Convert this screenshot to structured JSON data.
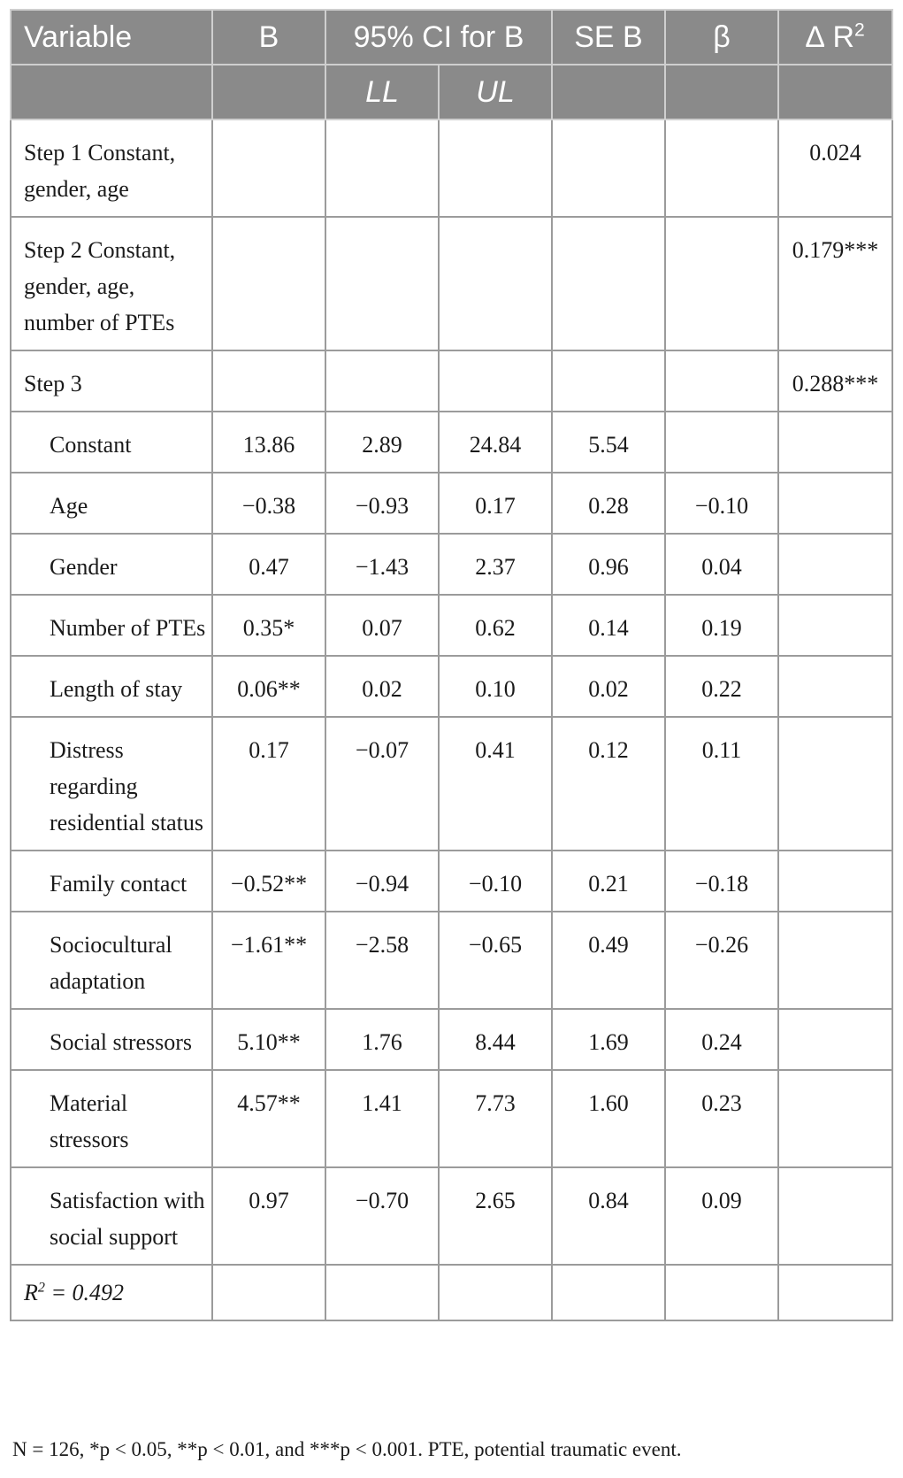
{
  "table": {
    "header": {
      "variable": "Variable",
      "b": "B",
      "ci": "95% CI for B",
      "se_b": "SE B",
      "beta": "β",
      "delta_r2_base": "∆ R",
      "delta_r2_sup": "2",
      "ll": "LL",
      "ul": "UL"
    },
    "rows": [
      {
        "label": "Step 1 Constant, gender, age",
        "indent": false,
        "b": "",
        "ll": "",
        "ul": "",
        "se": "",
        "beta": "",
        "dr2": "0.024"
      },
      {
        "label": "Step 2 Constant, gender, age, number of PTEs",
        "indent": false,
        "b": "",
        "ll": "",
        "ul": "",
        "se": "",
        "beta": "",
        "dr2": "0.179***"
      },
      {
        "label": "Step 3",
        "indent": false,
        "b": "",
        "ll": "",
        "ul": "",
        "se": "",
        "beta": "",
        "dr2": "0.288***"
      },
      {
        "label": "Constant",
        "indent": true,
        "b": "13.86",
        "ll": "2.89",
        "ul": "24.84",
        "se": "5.54",
        "beta": "",
        "dr2": ""
      },
      {
        "label": "Age",
        "indent": true,
        "b": "−0.38",
        "ll": "−0.93",
        "ul": "0.17",
        "se": "0.28",
        "beta": "−0.10",
        "dr2": ""
      },
      {
        "label": "Gender",
        "indent": true,
        "b": "0.47",
        "ll": "−1.43",
        "ul": "2.37",
        "se": "0.96",
        "beta": "0.04",
        "dr2": ""
      },
      {
        "label": "Number of PTEs",
        "indent": true,
        "b": "0.35*",
        "ll": "0.07",
        "ul": "0.62",
        "se": "0.14",
        "beta": "0.19",
        "dr2": ""
      },
      {
        "label": "Length of stay",
        "indent": true,
        "b": "0.06**",
        "ll": "0.02",
        "ul": "0.10",
        "se": "0.02",
        "beta": "0.22",
        "dr2": ""
      },
      {
        "label": "Distress regarding residential status",
        "indent": true,
        "b": "0.17",
        "ll": "−0.07",
        "ul": "0.41",
        "se": "0.12",
        "beta": "0.11",
        "dr2": ""
      },
      {
        "label": "Family contact",
        "indent": true,
        "b": "−0.52**",
        "ll": "−0.94",
        "ul": "−0.10",
        "se": "0.21",
        "beta": "−0.18",
        "dr2": ""
      },
      {
        "label": "Sociocultural adaptation",
        "indent": true,
        "b": "−1.61**",
        "ll": "−2.58",
        "ul": "−0.65",
        "se": "0.49",
        "beta": "−0.26",
        "dr2": ""
      },
      {
        "label": "Social stressors",
        "indent": true,
        "b": "5.10**",
        "ll": "1.76",
        "ul": "8.44",
        "se": "1.69",
        "beta": "0.24",
        "dr2": ""
      },
      {
        "label": "Material stressors",
        "indent": true,
        "b": "4.57**",
        "ll": "1.41",
        "ul": "7.73",
        "se": "1.60",
        "beta": "0.23",
        "dr2": ""
      },
      {
        "label": "Satisfaction with social support",
        "indent": true,
        "b": "0.97",
        "ll": "−0.70",
        "ul": "2.65",
        "se": "0.84",
        "beta": "0.09",
        "dr2": ""
      }
    ],
    "r2_row": {
      "label_base": "R",
      "label_sup": "2",
      "label_rest": " = 0.492"
    }
  },
  "footnote": "N = 126, *p < 0.05, **p < 0.01, and ***p < 0.001. PTE, potential traumatic event."
}
